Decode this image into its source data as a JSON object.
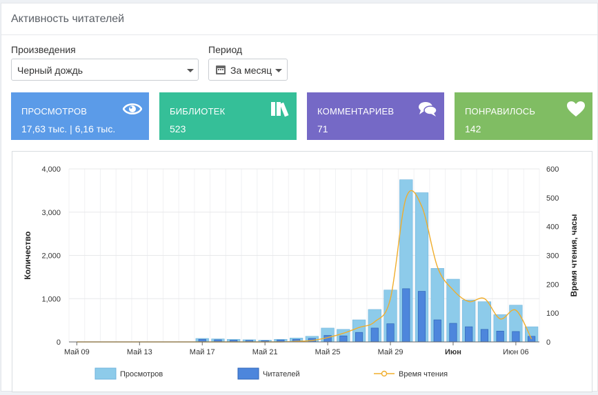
{
  "panel": {
    "title": "Активность читателей"
  },
  "filters": {
    "work_label": "Произведения",
    "work_value": "Черный дождь",
    "period_label": "Период",
    "period_value": "За месяц"
  },
  "cards": [
    {
      "title": "Просмотров",
      "value": "17,63 тыс. | 6,16 тыс.",
      "color": "#5b9be8",
      "icon": "eye-icon"
    },
    {
      "title": "Библиотек",
      "value": "523",
      "color": "#35bf98",
      "icon": "books-icon"
    },
    {
      "title": "Комментариев",
      "value": "71",
      "color": "#7569c6",
      "icon": "comments-icon"
    },
    {
      "title": "Понравилось",
      "value": "142",
      "color": "#80bd63",
      "icon": "heart-icon"
    }
  ],
  "chart_data": {
    "type": "bar",
    "x_tick_labels": [
      "Май 09",
      "Май 13",
      "Май 17",
      "Май 21",
      "Май 25",
      "Май 29",
      "Июн",
      "Июн 06"
    ],
    "y_left": {
      "label": "Количество",
      "ticks": [
        "0",
        "1,000",
        "2,000",
        "3,000",
        "4,000"
      ],
      "range": [
        0,
        4000
      ]
    },
    "y_right": {
      "label": "Время чтения, часы",
      "ticks": [
        "0",
        "100",
        "200",
        "300",
        "400",
        "500",
        "600"
      ],
      "range": [
        0,
        600
      ]
    },
    "categories": [
      "May 09",
      "May 10",
      "May 11",
      "May 12",
      "May 13",
      "May 14",
      "May 15",
      "May 16",
      "May 17",
      "May 18",
      "May 19",
      "May 20",
      "May 21",
      "May 22",
      "May 23",
      "May 24",
      "May 25",
      "May 26",
      "May 27",
      "May 28",
      "May 29",
      "May 30",
      "May 31",
      "Jun 01",
      "Jun 02",
      "Jun 03",
      "Jun 04",
      "Jun 05",
      "Jun 06",
      "Jun 07"
    ],
    "series": [
      {
        "name": "Просмотров",
        "color": "#8dcbea",
        "values": [
          0,
          0,
          0,
          0,
          0,
          0,
          0,
          0,
          80,
          70,
          60,
          50,
          40,
          60,
          90,
          130,
          320,
          290,
          510,
          750,
          1200,
          3750,
          3450,
          1700,
          1450,
          970,
          930,
          630,
          850,
          350
        ]
      },
      {
        "name": "Читателей",
        "color": "#4d86dc",
        "values": [
          0,
          0,
          0,
          0,
          0,
          0,
          0,
          0,
          60,
          50,
          40,
          35,
          30,
          45,
          60,
          80,
          150,
          140,
          220,
          320,
          420,
          1230,
          1170,
          510,
          430,
          350,
          290,
          250,
          240,
          130
        ]
      },
      {
        "name": "Время чтения",
        "color": "#f0ad2b",
        "axis": "right",
        "values": [
          0,
          0,
          0,
          0,
          0,
          0,
          0,
          0,
          0,
          0,
          0,
          0,
          0,
          0,
          2,
          5,
          15,
          30,
          50,
          70,
          150,
          500,
          470,
          260,
          180,
          140,
          150,
          80,
          110,
          10
        ]
      }
    ]
  }
}
